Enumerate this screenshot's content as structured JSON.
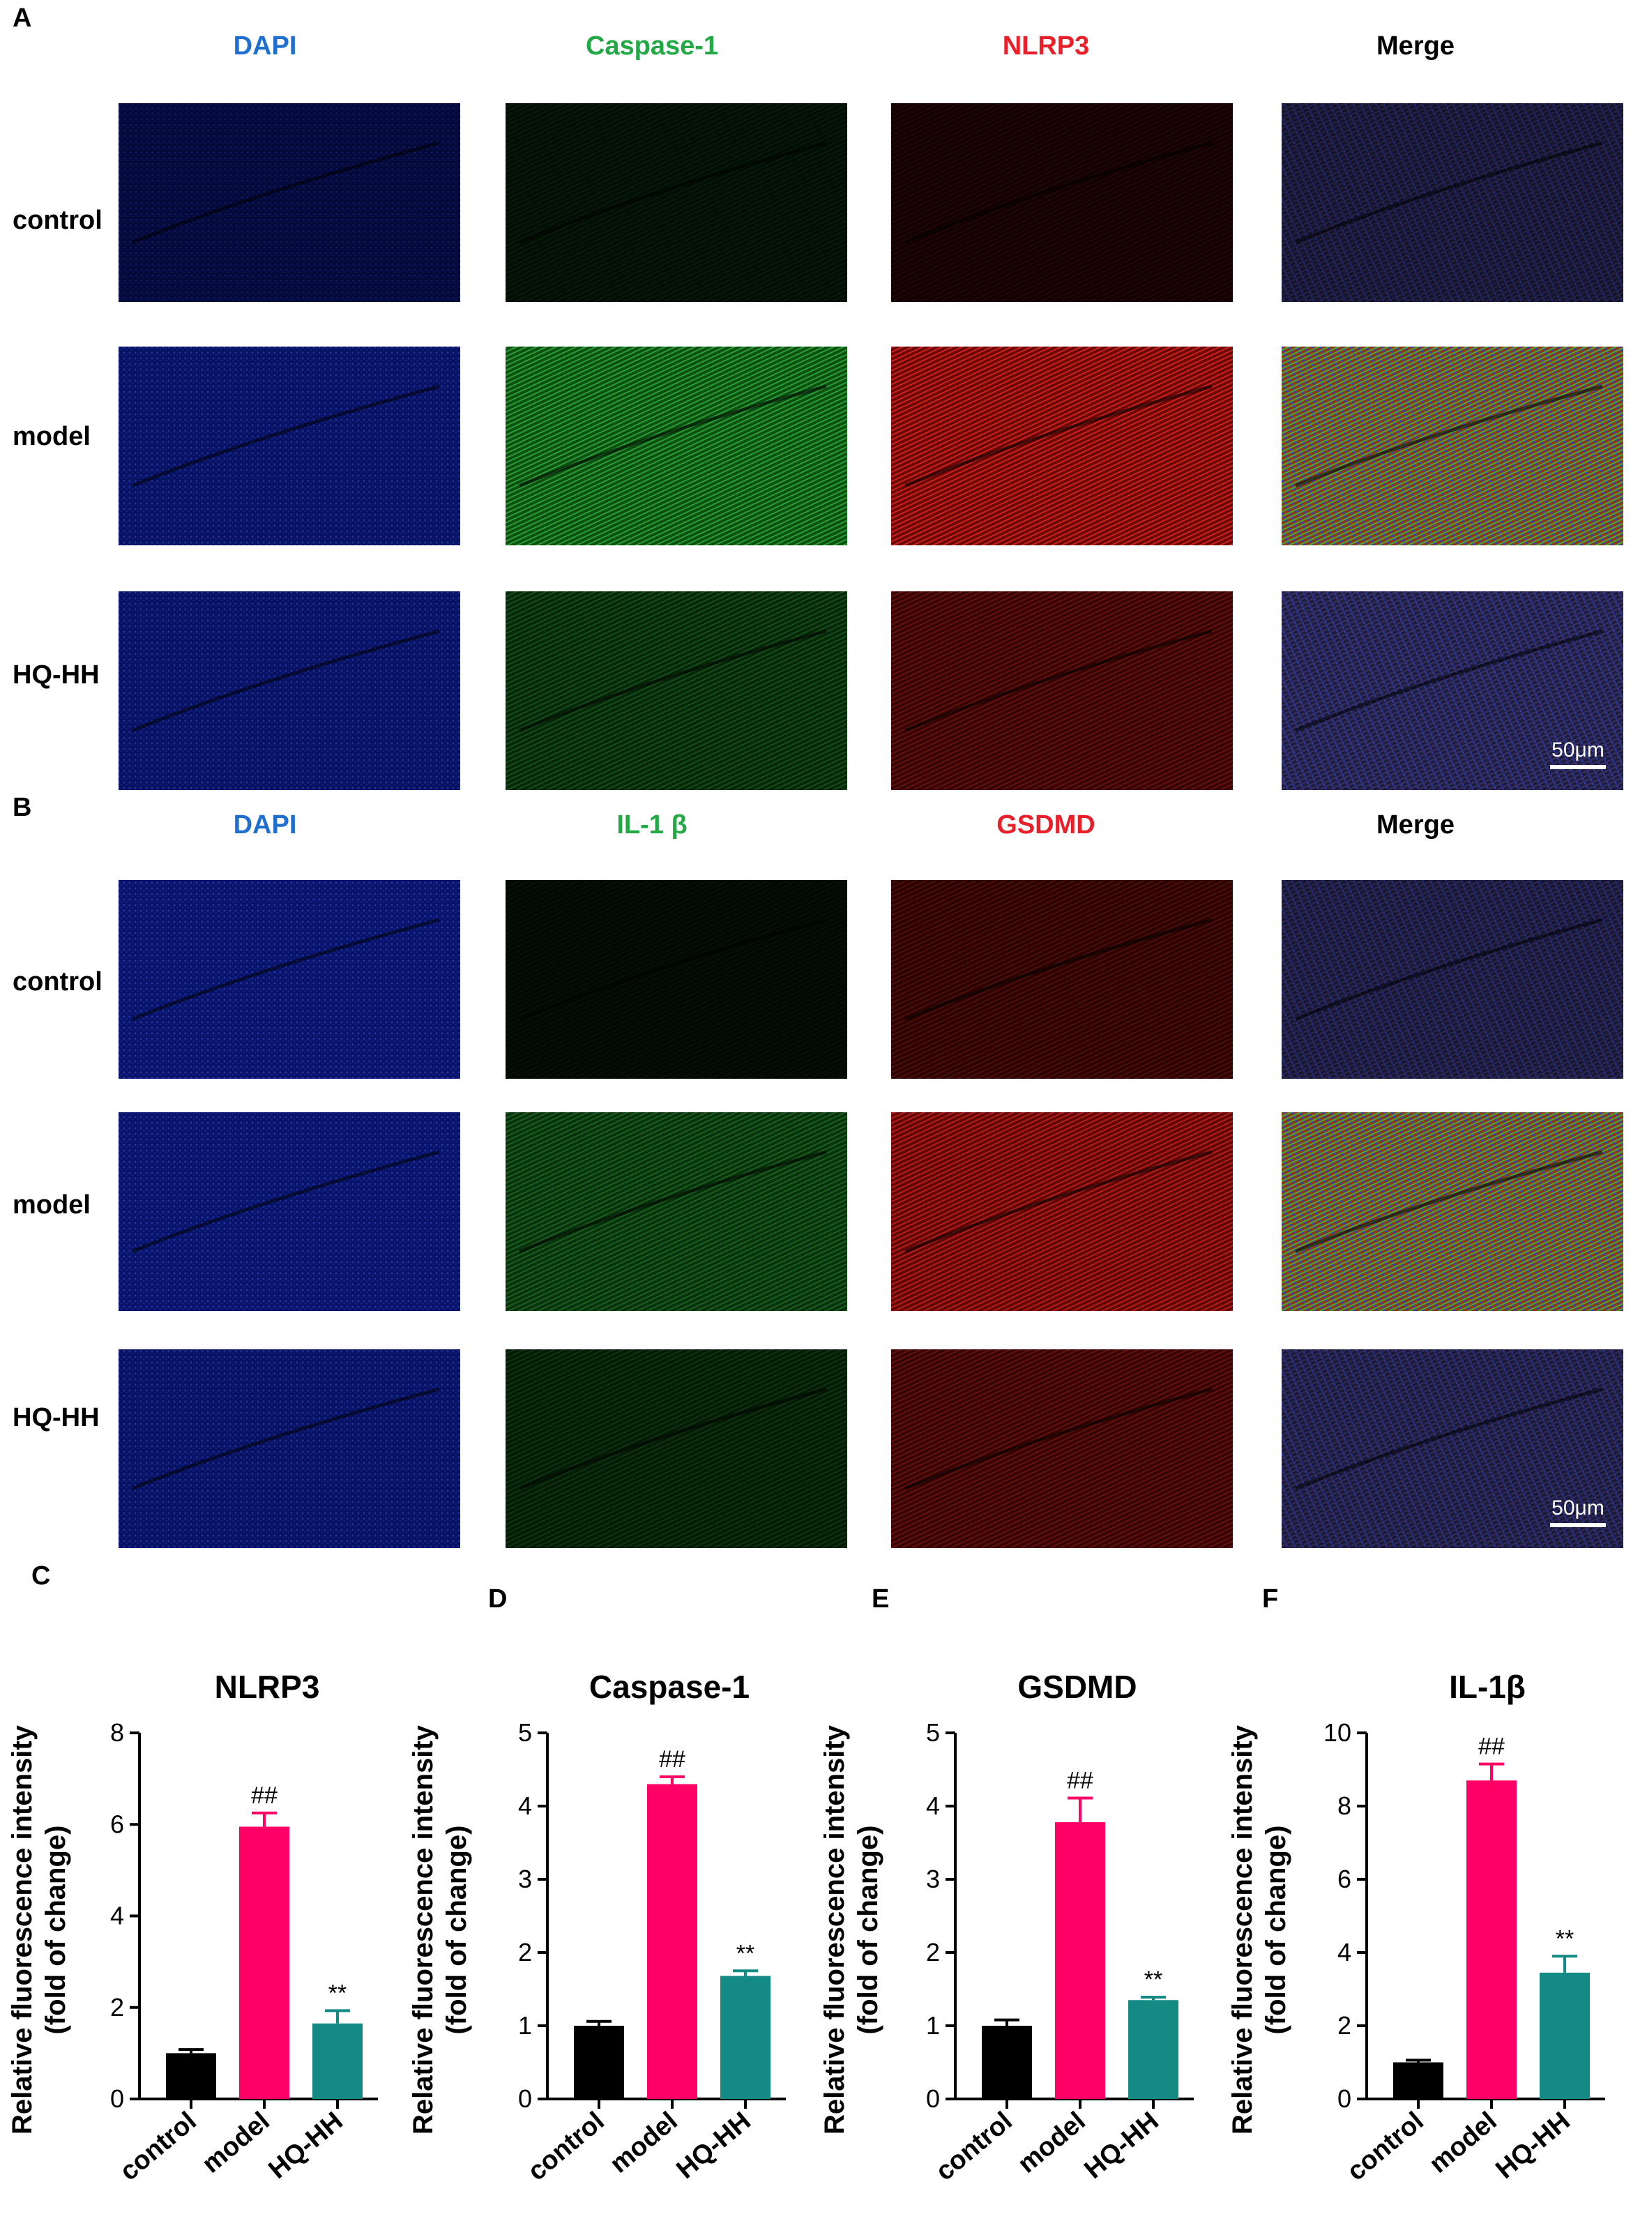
{
  "figure": {
    "panels": {
      "A": {
        "letter": "A",
        "columns": [
          {
            "label": "DAPI",
            "color": "#1f6fd0",
            "channel": "blue"
          },
          {
            "label": "Caspase-1",
            "color": "#22a845",
            "channel": "green"
          },
          {
            "label": "NLRP3",
            "color": "#e8202a",
            "channel": "red"
          },
          {
            "label": "Merge",
            "color": "#000000",
            "channel": "merge"
          }
        ],
        "rows": [
          "control",
          "model",
          "HQ-HH"
        ],
        "intensity": [
          [
            0.25,
            0.15,
            0.15,
            0.25
          ],
          [
            0.3,
            0.9,
            0.9,
            0.9
          ],
          [
            0.3,
            0.45,
            0.45,
            0.55
          ]
        ],
        "scale_bar": "50μm"
      },
      "B": {
        "letter": "B",
        "columns": [
          {
            "label": "DAPI",
            "color": "#1f6fd0",
            "channel": "blue"
          },
          {
            "label": "IL-1 β",
            "color": "#22a845",
            "channel": "green"
          },
          {
            "label": "GSDMD",
            "color": "#e8202a",
            "channel": "red"
          },
          {
            "label": "Merge",
            "color": "#000000",
            "channel": "merge"
          }
        ],
        "rows": [
          "control",
          "model",
          "HQ-HH"
        ],
        "intensity": [
          [
            0.35,
            0.1,
            0.35,
            0.35
          ],
          [
            0.35,
            0.55,
            0.8,
            0.65
          ],
          [
            0.3,
            0.3,
            0.45,
            0.45
          ]
        ],
        "scale_bar": "50μm"
      }
    }
  },
  "chart_data": [
    {
      "type": "bar",
      "letter": "C",
      "title": "NLRP3",
      "ylabel_lines": [
        "Relative   fluorescence intensity",
        "(fold of change)"
      ],
      "categories": [
        "control",
        "model",
        "HQ-HH"
      ],
      "values": [
        1.0,
        5.95,
        1.65
      ],
      "errors": [
        0.08,
        0.3,
        0.28
      ],
      "annotations": [
        "",
        "##",
        "**"
      ],
      "ylim": [
        0,
        8
      ],
      "yticks": [
        0,
        2,
        4,
        6,
        8
      ],
      "colors": [
        "#000000",
        "#ff0066",
        "#138b84"
      ]
    },
    {
      "type": "bar",
      "letter": "D",
      "title": "Caspase-1",
      "ylabel_lines": [
        "Relative   fluorescence intensity",
        "(fold of change)"
      ],
      "categories": [
        "control",
        "model",
        "HQ-HH"
      ],
      "values": [
        1.0,
        4.3,
        1.68
      ],
      "errors": [
        0.06,
        0.1,
        0.07
      ],
      "annotations": [
        "",
        "##",
        "**"
      ],
      "ylim": [
        0,
        5
      ],
      "yticks": [
        0,
        1,
        2,
        3,
        4,
        5
      ],
      "colors": [
        "#000000",
        "#ff0066",
        "#138b84"
      ]
    },
    {
      "type": "bar",
      "letter": "E",
      "title": "GSDMD",
      "ylabel_lines": [
        "Relative   fluorescence intensity",
        "(fold of change)"
      ],
      "categories": [
        "control",
        "model",
        "HQ-HH"
      ],
      "values": [
        1.0,
        3.78,
        1.35
      ],
      "errors": [
        0.08,
        0.33,
        0.04
      ],
      "annotations": [
        "",
        "##",
        "**"
      ],
      "ylim": [
        0,
        5
      ],
      "yticks": [
        0,
        1,
        2,
        3,
        4,
        5
      ],
      "colors": [
        "#000000",
        "#ff0066",
        "#138b84"
      ]
    },
    {
      "type": "bar",
      "letter": "F",
      "title": "IL-1β",
      "ylabel_lines": [
        "Relative   fluorescence intensity",
        "(fold of change)"
      ],
      "categories": [
        "control",
        "model",
        "HQ-HH"
      ],
      "values": [
        1.0,
        8.7,
        3.45
      ],
      "errors": [
        0.06,
        0.45,
        0.45
      ],
      "annotations": [
        "",
        "##",
        "**"
      ],
      "ylim": [
        0,
        10
      ],
      "yticks": [
        0,
        2,
        4,
        6,
        8,
        10
      ],
      "colors": [
        "#000000",
        "#ff0066",
        "#138b84"
      ]
    }
  ]
}
